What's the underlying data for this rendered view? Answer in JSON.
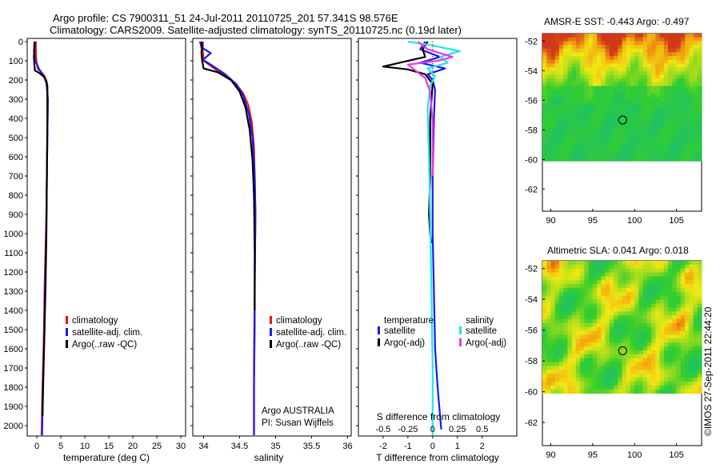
{
  "header": {
    "line1": "Argo profile: CS 7900311_51 24-Jul-2011 20110725_201 57.341S 98.576E",
    "line2": "Climatology: CARS2009. Satellite-adjusted climatology: synTS_20110725.nc (0.19d later)"
  },
  "footer_stamp": "©IMOS 27-Sep-2011 22:44:20",
  "colors": {
    "climatology": "#ee1111",
    "satellite": "#1a1aee",
    "argo": "#000000",
    "sal_satellite": "#22e5ee",
    "sal_argo": "#ee33ee"
  },
  "chart_data": [
    {
      "type": "line",
      "xlabel": "temperature (deg C)",
      "ylabel": "",
      "xlim": [
        -2,
        31
      ],
      "ylim": [
        2050,
        0
      ],
      "xticks": [
        "0",
        "5",
        "10",
        "15",
        "20",
        "25",
        "30"
      ],
      "xtick_values": [
        0,
        5,
        10,
        15,
        20,
        25,
        30
      ],
      "yticks": [
        "0",
        "100",
        "200",
        "300",
        "400",
        "500",
        "600",
        "700",
        "800",
        "900",
        "1000",
        "1100",
        "1200",
        "1300",
        "1400",
        "1500",
        "1600",
        "1700",
        "1800",
        "1900",
        "2000"
      ],
      "legend": [
        "climatology",
        "satellite-adj. clim.",
        "Argo(..raw -QC)"
      ],
      "series": [
        {
          "name": "climatology",
          "color_key": "climatology",
          "x": [
            -0.2,
            -0.2,
            -0.1,
            0.2,
            1.5,
            2.1,
            2.3,
            2.2,
            2.1,
            2.0,
            1.8,
            1.6,
            1.5,
            1.4,
            1.3,
            1.2,
            1.1,
            1.0
          ],
          "y": [
            0,
            50,
            100,
            140,
            175,
            210,
            300,
            500,
            700,
            900,
            1100,
            1300,
            1500,
            1600,
            1700,
            1800,
            1900,
            2050
          ]
        },
        {
          "name": "satellite-adj. clim.",
          "color_key": "satellite",
          "x": [
            -0.5,
            -0.6,
            -0.3,
            0.4,
            1.3,
            2.0,
            2.3,
            2.2,
            2.1,
            2.0,
            1.9,
            1.7,
            1.6,
            1.5,
            1.4,
            1.3,
            1.2,
            1.1
          ],
          "y": [
            0,
            50,
            100,
            140,
            175,
            210,
            300,
            500,
            700,
            900,
            1100,
            1300,
            1500,
            1600,
            1700,
            1800,
            1900,
            2050
          ]
        },
        {
          "name": "Argo(..raw -QC)",
          "color_key": "argo",
          "x": [
            -0.4,
            -0.5,
            -0.6,
            -0.5,
            -0.4,
            0.6,
            1.6,
            2.2,
            2.2,
            2.1,
            2.0,
            1.8,
            1.6,
            1.5,
            1.4,
            1.3,
            1.2
          ],
          "y": [
            0,
            40,
            80,
            120,
            150,
            165,
            185,
            230,
            400,
            700,
            1000,
            1300,
            1500,
            1600,
            1700,
            1800,
            1950
          ]
        }
      ]
    },
    {
      "type": "line",
      "xlabel": "salinity",
      "ylabel": "",
      "xlim": [
        33.85,
        36.05
      ],
      "ylim": [
        2050,
        0
      ],
      "xticks": [
        "34",
        "34.5",
        "35",
        "35.5",
        "36"
      ],
      "xtick_values": [
        34,
        34.5,
        35,
        35.5,
        36
      ],
      "legend": [
        "climatology",
        "satellite-adj. clim.",
        "Argo(..raw -QC)"
      ],
      "annotation_line1": "Argo AUSTRALIA",
      "annotation_line2": "PI: Susan Wijffels",
      "series": [
        {
          "name": "climatology",
          "color_key": "climatology",
          "x": [
            33.99,
            33.99,
            34.0,
            34.15,
            34.3,
            34.45,
            34.55,
            34.62,
            34.67,
            34.7,
            34.71,
            34.72,
            34.71,
            34.71,
            34.7,
            34.7
          ],
          "y": [
            0,
            50,
            100,
            140,
            180,
            220,
            270,
            330,
            420,
            550,
            700,
            900,
            1200,
            1500,
            1800,
            2050
          ]
        },
        {
          "name": "satellite-adj. clim.",
          "color_key": "satellite",
          "x": [
            33.95,
            33.97,
            34.1,
            33.99,
            34.1,
            34.3,
            34.45,
            34.55,
            34.63,
            34.68,
            34.71,
            34.72,
            34.71,
            34.7,
            34.7
          ],
          "y": [
            0,
            30,
            60,
            95,
            120,
            170,
            220,
            280,
            380,
            500,
            700,
            900,
            1300,
            1700,
            2050
          ]
        },
        {
          "name": "Argo(..raw -QC)",
          "color_key": "argo",
          "x": [
            33.98,
            33.97,
            33.98,
            34.0,
            34.2,
            34.38,
            34.5,
            34.58,
            34.64,
            34.68,
            34.7,
            34.71,
            34.71
          ],
          "y": [
            0,
            60,
            100,
            140,
            160,
            200,
            260,
            340,
            460,
            620,
            800,
            1100,
            1400
          ]
        }
      ]
    },
    {
      "type": "line",
      "xlabel": "T difference from climatology",
      "xlabel_top": "S difference from climatology",
      "ylabel": "",
      "xlim": [
        -3,
        3.4
      ],
      "ylim": [
        2050,
        0
      ],
      "xticks": [
        "-2",
        "-1",
        "0",
        "1",
        "2"
      ],
      "xtick_values": [
        -2,
        -1,
        0,
        1,
        2
      ],
      "sticks": [
        "-0.5",
        "-0.25",
        "0",
        "0.25",
        "0.5"
      ],
      "stick_values": [
        -2,
        -1,
        0,
        1,
        2
      ],
      "legend_groups": [
        "temperature",
        "salinity"
      ],
      "legend": [
        "satellite",
        "Argo(-adj)",
        "satellite",
        "Argo(-adj)"
      ],
      "series": [
        {
          "name": "satellite",
          "group": "temperature",
          "color_key": "satellite",
          "x": [
            -0.3,
            -0.5,
            0.3,
            -0.5,
            0.5,
            -0.2,
            0.0,
            0.1,
            0.05,
            0.0,
            0.0,
            0.05,
            0.1,
            0.2,
            0.3,
            0.35
          ],
          "y": [
            0,
            40,
            80,
            110,
            140,
            170,
            200,
            250,
            400,
            700,
            1000,
            1300,
            1600,
            1800,
            1950,
            2020
          ]
        },
        {
          "name": "Argo(-adj)",
          "group": "temperature",
          "color_key": "argo",
          "x": [
            -0.2,
            -0.4,
            -0.3,
            -1.0,
            -2.0,
            -1.0,
            -0.3,
            0.0,
            -0.1,
            -0.1,
            -0.15,
            -0.1,
            -0.05
          ],
          "y": [
            0,
            40,
            80,
            100,
            130,
            145,
            170,
            220,
            400,
            700,
            900,
            1000,
            1050
          ]
        },
        {
          "name": "satellite",
          "group": "salinity",
          "color_key": "sal_satellite",
          "x": [
            -1.0,
            0.0,
            1.1,
            0.3,
            0.6,
            -0.2,
            0.1,
            -0.1,
            -0.2,
            -0.15,
            -0.1,
            -0.05,
            0.0,
            0.0
          ],
          "y": [
            0,
            20,
            50,
            80,
            110,
            140,
            180,
            230,
            350,
            600,
            900,
            1300,
            1700,
            2050
          ]
        },
        {
          "name": "Argo(-adj)",
          "group": "salinity",
          "color_key": "sal_argo",
          "x": [
            -0.6,
            -0.2,
            0.8,
            0.2,
            -1.0,
            -0.7,
            -0.3,
            -0.1,
            0.0,
            0.0
          ],
          "y": [
            0,
            40,
            80,
            100,
            120,
            150,
            190,
            260,
            420,
            700
          ]
        }
      ]
    },
    {
      "type": "heatmap",
      "title": "AMSR-E SST: -0.443 Argo: -0.497",
      "xlim": [
        89,
        108
      ],
      "ylim": [
        -63.5,
        -51.5
      ],
      "xticks": [
        "90",
        "95",
        "100",
        "105"
      ],
      "xtick_values": [
        90,
        95,
        100,
        105
      ],
      "yticks": [
        "-52",
        "-54",
        "-56",
        "-58",
        "-60",
        "-62"
      ],
      "ytick_values": [
        -52,
        -54,
        -56,
        -58,
        -60,
        -62
      ],
      "data_extent": {
        "lon": [
          89,
          108
        ],
        "lat": [
          -60.1,
          -51.5
        ]
      },
      "marker": {
        "lon": 98.576,
        "lat": -57.341
      }
    },
    {
      "type": "heatmap",
      "title": "Altimetric SLA: 0.041 Argo: 0.018",
      "xlim": [
        89,
        108
      ],
      "ylim": [
        -63.5,
        -51.5
      ],
      "xticks": [
        "90",
        "95",
        "100",
        "105"
      ],
      "xtick_values": [
        90,
        95,
        100,
        105
      ],
      "yticks": [
        "-52",
        "-54",
        "-56",
        "-58",
        "-60",
        "-62"
      ],
      "ytick_values": [
        -52,
        -54,
        -56,
        -58,
        -60,
        -62
      ],
      "data_extent": {
        "lon": [
          89,
          108
        ],
        "lat": [
          -60.1,
          -51.5
        ]
      },
      "marker": {
        "lon": 98.576,
        "lat": -57.341
      }
    }
  ]
}
